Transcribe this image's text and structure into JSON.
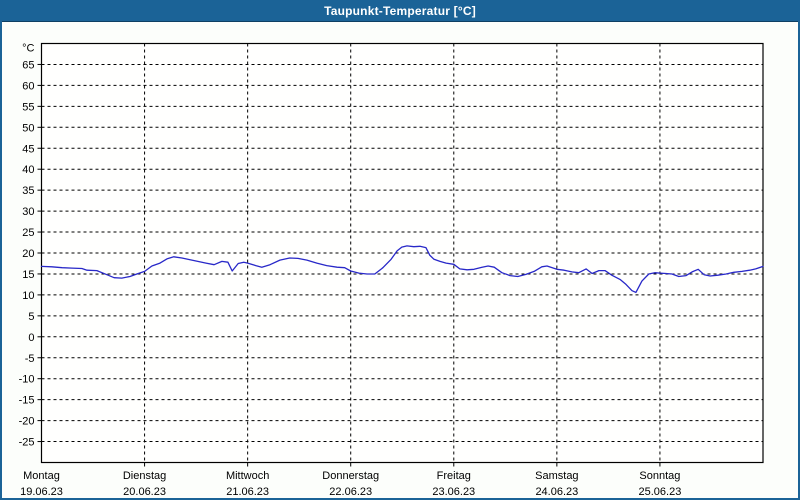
{
  "window": {
    "title": "Taupunkt-Temperatur [°C]"
  },
  "colors": {
    "titlebar": "#1b6397",
    "window_border": "#1b6397",
    "window_bg": "#fcfefb",
    "plot_bg": "#fffffe",
    "frame": "#000000",
    "grid": "#000000",
    "line": "#2828c8"
  },
  "chart_data": {
    "type": "line",
    "title": "Taupunkt-Temperatur [°C]",
    "ylabel_unit": "°C",
    "xlabel": "",
    "ylim": [
      -30,
      70
    ],
    "ytick_step": 5,
    "ytick_label_max": 65,
    "ytick_label_min": -25,
    "grid": "dashed",
    "legend_position": "none",
    "x_span_hours": 168,
    "x_days": [
      {
        "name": "Montag",
        "date": "19.06.23"
      },
      {
        "name": "Dienstag",
        "date": "20.06.23"
      },
      {
        "name": "Mittwoch",
        "date": "21.06.23"
      },
      {
        "name": "Donnerstag",
        "date": "22.06.23"
      },
      {
        "name": "Freitag",
        "date": "23.06.23"
      },
      {
        "name": "Samstag",
        "date": "24.06.23"
      },
      {
        "name": "Sonntag",
        "date": "25.06.23"
      }
    ],
    "series": [
      {
        "name": "Taupunkt",
        "color": "#2828c8",
        "points_hour_temp": [
          [
            0,
            16.8
          ],
          [
            2.4,
            16.7
          ],
          [
            4.8,
            16.5
          ],
          [
            7.1,
            16.4
          ],
          [
            9.4,
            16.3
          ],
          [
            10.6,
            15.9
          ],
          [
            12.9,
            15.8
          ],
          [
            15.3,
            14.8
          ],
          [
            16.9,
            14.1
          ],
          [
            18.7,
            14.0
          ],
          [
            20.6,
            14.4
          ],
          [
            22.2,
            15.0
          ],
          [
            24,
            15.6
          ],
          [
            25.7,
            16.9
          ],
          [
            27.6,
            17.6
          ],
          [
            29.2,
            18.6
          ],
          [
            30.8,
            19.1
          ],
          [
            32.7,
            18.8
          ],
          [
            34.6,
            18.4
          ],
          [
            36.4,
            18.0
          ],
          [
            38.3,
            17.6
          ],
          [
            40.2,
            17.2
          ],
          [
            42,
            18.0
          ],
          [
            43.4,
            17.8
          ],
          [
            44.4,
            15.7
          ],
          [
            45.8,
            17.5
          ],
          [
            47.1,
            17.8
          ],
          [
            48,
            17.6
          ],
          [
            49.9,
            17.0
          ],
          [
            51.3,
            16.6
          ],
          [
            53.2,
            17.2
          ],
          [
            55.5,
            18.3
          ],
          [
            57.8,
            18.8
          ],
          [
            59.7,
            18.7
          ],
          [
            61.8,
            18.3
          ],
          [
            64.1,
            17.6
          ],
          [
            66.4,
            17.0
          ],
          [
            68.8,
            16.6
          ],
          [
            70.6,
            16.5
          ],
          [
            72,
            15.7
          ],
          [
            73.9,
            15.2
          ],
          [
            75.8,
            15.0
          ],
          [
            77.6,
            15.0
          ],
          [
            79.5,
            16.5
          ],
          [
            81.4,
            18.5
          ],
          [
            82.8,
            20.5
          ],
          [
            83.9,
            21.4
          ],
          [
            85.1,
            21.7
          ],
          [
            86.7,
            21.5
          ],
          [
            88.1,
            21.6
          ],
          [
            89.5,
            21.3
          ],
          [
            90.4,
            19.5
          ],
          [
            91.4,
            18.5
          ],
          [
            92.8,
            18.0
          ],
          [
            94.2,
            17.6
          ],
          [
            96,
            17.3
          ],
          [
            97.4,
            16.2
          ],
          [
            99.1,
            16.0
          ],
          [
            100.7,
            16.1
          ],
          [
            102.6,
            16.6
          ],
          [
            104,
            16.9
          ],
          [
            105.4,
            16.6
          ],
          [
            107.2,
            15.3
          ],
          [
            109.1,
            14.6
          ],
          [
            110.9,
            14.4
          ],
          [
            112.8,
            14.9
          ],
          [
            114.7,
            15.6
          ],
          [
            116.5,
            16.7
          ],
          [
            117.7,
            16.9
          ],
          [
            120,
            16.1
          ],
          [
            121.7,
            15.9
          ],
          [
            123.5,
            15.5
          ],
          [
            125.1,
            15.3
          ],
          [
            126.8,
            16.2
          ],
          [
            128.2,
            15.1
          ],
          [
            129.8,
            15.8
          ],
          [
            131.2,
            15.8
          ],
          [
            132.8,
            14.7
          ],
          [
            134.7,
            13.7
          ],
          [
            136.1,
            12.5
          ],
          [
            137.5,
            11.0
          ],
          [
            138.4,
            10.6
          ],
          [
            139.8,
            13.3
          ],
          [
            141.4,
            15.0
          ],
          [
            142.8,
            15.3
          ],
          [
            144,
            15.2
          ],
          [
            145.4,
            15.1
          ],
          [
            146.8,
            15.0
          ],
          [
            148.4,
            14.4
          ],
          [
            150.1,
            14.6
          ],
          [
            151.5,
            15.5
          ],
          [
            152.9,
            16.1
          ],
          [
            154.3,
            14.8
          ],
          [
            155.7,
            14.5
          ],
          [
            157.5,
            14.7
          ],
          [
            159.4,
            15.0
          ],
          [
            161.2,
            15.4
          ],
          [
            163.1,
            15.6
          ],
          [
            164.9,
            15.9
          ],
          [
            166.3,
            16.2
          ],
          [
            168,
            16.8
          ]
        ]
      }
    ]
  }
}
